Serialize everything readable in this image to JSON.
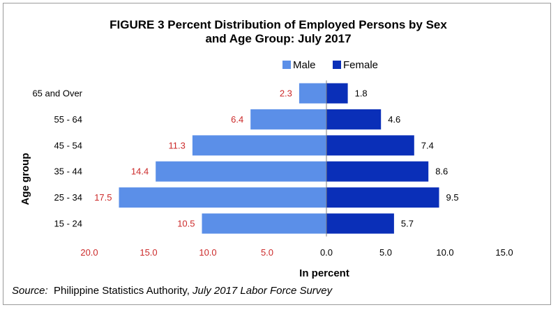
{
  "chart_data": {
    "type": "bar",
    "orientation": "horizontal",
    "title_line1": "FIGURE 3 Percent Distribution of Employed Persons by Sex",
    "title_line2": "and Age Group: July 2017",
    "xlabel": "In percent",
    "ylabel": "Age group",
    "categories": [
      "65  and Over",
      "55 - 64",
      "45 - 54",
      "35 - 44",
      "25 - 34",
      "15 - 24"
    ],
    "series": [
      {
        "name": "Male",
        "values": [
          2.3,
          6.4,
          11.3,
          14.4,
          17.5,
          10.5
        ],
        "color": "#5b8fe8",
        "label_color": "#cc2a2a",
        "direction": "left"
      },
      {
        "name": "Female",
        "values": [
          1.8,
          4.6,
          7.4,
          8.6,
          9.5,
          5.7
        ],
        "color": "#0a2fb8",
        "label_color": "#000000",
        "direction": "right"
      }
    ],
    "xlim": [
      -20,
      15
    ],
    "x_ticks": [
      {
        "value": -20,
        "label": "20.0",
        "color": "#cc2a2a"
      },
      {
        "value": -15,
        "label": "15.0",
        "color": "#cc2a2a"
      },
      {
        "value": -10,
        "label": "10.0",
        "color": "#cc2a2a"
      },
      {
        "value": -5,
        "label": "5.0",
        "color": "#cc2a2a"
      },
      {
        "value": 0,
        "label": "0.0",
        "color": "#000000"
      },
      {
        "value": 5,
        "label": "5.0",
        "color": "#000000"
      },
      {
        "value": 10,
        "label": "10.0",
        "color": "#000000"
      },
      {
        "value": 15,
        "label": "15.0",
        "color": "#000000"
      }
    ],
    "legend_position": "top",
    "grid": false
  },
  "source": {
    "prefix": "Source:",
    "org": "  Philippine Statistics Authority, ",
    "doc": "July 2017 Labor Force Survey"
  }
}
